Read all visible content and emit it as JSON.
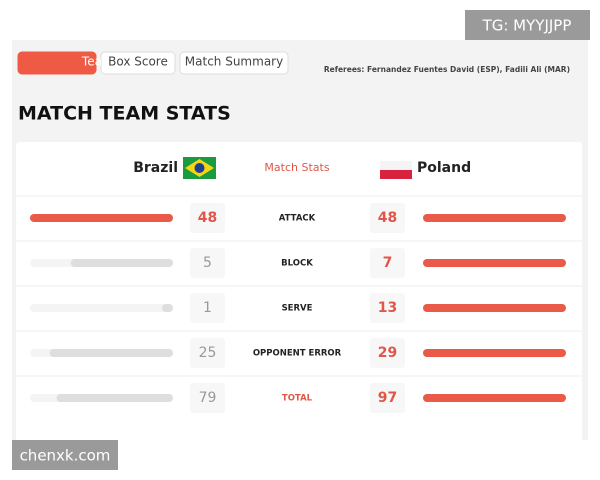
{
  "watermark_top": "TG: MYYJJPP",
  "watermark_bottom": "chenxk.com",
  "tabs": [
    "Team Stats",
    "Box Score",
    "Match Summary"
  ],
  "referees": "Referees: Fernandez Fuentes David (ESP), Fadili Ali (MAR)",
  "title": "MATCH TEAM STATS",
  "header": {
    "home": "Brazil",
    "center": "Match Stats",
    "away": "Poland"
  },
  "rows": [
    {
      "label": "ATTACK",
      "home": 48,
      "away": 48
    },
    {
      "label": "BLOCK",
      "home": 5,
      "away": 7
    },
    {
      "label": "SERVE",
      "home": 1,
      "away": 13
    },
    {
      "label": "OPPONENT ERROR",
      "home": 25,
      "away": 29
    },
    {
      "label": "TOTAL",
      "home": 79,
      "away": 97
    }
  ]
}
